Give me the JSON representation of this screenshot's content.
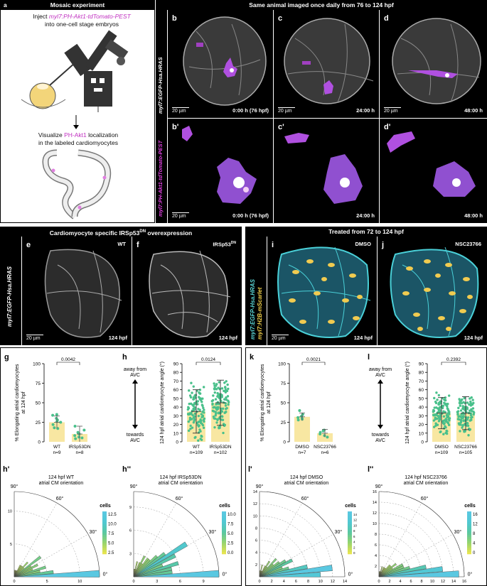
{
  "panel_a": {
    "letter": "a",
    "header": "Mosaic experiment",
    "inject_pre": "Inject ",
    "inject_construct": "myl7:PH-Akt1-tdTomato-PEST",
    "inject_post": "into one-cell stage embryos",
    "visualize_pre": "Visualize ",
    "visualize_mid": "PH-Akt1",
    "visualize_post": " localization",
    "visualize_line2": "in the labeled cardiomyocytes"
  },
  "panel_top": {
    "header": "Same animal imaged once daily from 76 to 124 hpf",
    "row1_label": "myl7:EGFP-Hsa.HRAS",
    "row2_label": "myl7:PH-Akt1-tdTomato-PEST",
    "images": [
      {
        "letter": "b",
        "time": "0:00 h (76  hpf)",
        "scale": "20 µm"
      },
      {
        "letter": "c",
        "time": "24:00 h",
        "scale": "20 µm"
      },
      {
        "letter": "d",
        "time": "48:00 h",
        "scale": "20 µm"
      },
      {
        "letter": "b'",
        "time": "0:00 h (76 hpf)",
        "scale": "20 µm"
      },
      {
        "letter": "c'",
        "time": "24:00 h",
        "scale": ""
      },
      {
        "letter": "d'",
        "time": "48:00 h",
        "scale": ""
      }
    ]
  },
  "panel_ef": {
    "header": "Cardiomyocyte specific IRSp53",
    "header_sup": "DN",
    "header_post": " overexpression",
    "side_label": "myl7:EGFP-Hsa.HRAS",
    "images": [
      {
        "letter": "e",
        "name": "WT",
        "name_sup": "",
        "time": "124 hpf",
        "scale": "20 µm"
      },
      {
        "letter": "f",
        "name": "IRSp53",
        "name_sup": "DN",
        "time": "124 hpf",
        "scale": ""
      }
    ]
  },
  "panel_ij": {
    "header": "Treated from 72 to 124 hpf",
    "side_label_1": "myl7:EGFP-Hsa.HRAS",
    "side_label_2": "myl7:H2B-mScarlet",
    "images": [
      {
        "letter": "i",
        "name": "DMSO",
        "time": "124 hpf",
        "scale": "20 µm"
      },
      {
        "letter": "j",
        "name": "NSC23766",
        "time": "124 hpf",
        "scale": ""
      }
    ]
  },
  "panel_g": {
    "letter": "g",
    "ylabel_1": "% Elongating atrial cardiomyocytes",
    "ylabel_2": "at 124 hpf",
    "pvalue": "0.0042",
    "yticks": [
      "0",
      "25",
      "50",
      "75",
      "100"
    ],
    "groups": [
      {
        "name": "WT",
        "n": "n=9"
      },
      {
        "name": "IRSp53DN",
        "n": "n=8"
      }
    ]
  },
  "panel_h": {
    "letter": "h",
    "ylabel": "124 hpf atrial cardiomyocyte angle (°)",
    "pvalue": "0.0124",
    "away": "away from",
    "away_2": "AVC",
    "towards": "towards",
    "towards_2": "AVC",
    "yticks": [
      "0",
      "10",
      "20",
      "30",
      "40",
      "50",
      "60",
      "70",
      "80",
      "90"
    ],
    "groups": [
      {
        "name": "WT",
        "n": "n=109"
      },
      {
        "name": "IRSp53DN",
        "n": "n=102"
      }
    ]
  },
  "panel_k": {
    "letter": "k",
    "ylabel_1": "% Elongating atrial cardiomyocytes",
    "ylabel_2": "at 124 hpf",
    "pvalue": "0.0021",
    "yticks": [
      "0",
      "25",
      "50",
      "75",
      "100"
    ],
    "groups": [
      {
        "name": "DMSO",
        "n": "n=7"
      },
      {
        "name": "NSC23766",
        "n": "n=6"
      }
    ]
  },
  "panel_l": {
    "letter": "l",
    "ylabel": "124 hpf atrial cardiomyocyte angle (°)",
    "pvalue": "0.2392",
    "away": "away from",
    "away_2": "AVC",
    "towards": "towards",
    "towards_2": "AVC",
    "yticks": [
      "0",
      "10",
      "20",
      "30",
      "40",
      "50",
      "60",
      "70",
      "80",
      "90"
    ],
    "groups": [
      {
        "name": "DMSO",
        "n": "n=109"
      },
      {
        "name": "NSC23766",
        "n": "n=105"
      }
    ]
  },
  "polars": [
    {
      "letter": "h'",
      "title_1": "124 hpf WT",
      "title_2": "atrial CM orientation",
      "rticks": [
        "0",
        "5",
        "10"
      ],
      "rlabels": [
        "5",
        "10"
      ],
      "cb_ticks": [
        "12.5",
        "10.0",
        "7.5",
        "5.0",
        "2.5"
      ]
    },
    {
      "letter": "h''",
      "title_1": "124 hpf IRSp53DN",
      "title_2": "atrial CM orientation",
      "rticks": [
        "0",
        "3",
        "6",
        "9"
      ],
      "rlabels": [
        "3",
        "6",
        "9"
      ],
      "cb_ticks": [
        "10.0",
        "7.5",
        "5.0",
        "2.5",
        "0.0"
      ]
    },
    {
      "letter": "l'",
      "title_1": "124 hpf DMSO",
      "title_2": "atrial CM orientation",
      "rticks": [
        "0",
        "2",
        "4",
        "6",
        "8",
        "10",
        "12",
        "14"
      ],
      "rlabels": [
        "2",
        "4",
        "6",
        "8",
        "10",
        "12",
        "14"
      ],
      "cb_ticks": [
        "14",
        "12",
        "10",
        "8",
        "6",
        "4",
        "2",
        "0"
      ]
    },
    {
      "letter": "l''",
      "title_1": "124 hpf NSC23766",
      "title_2": "atrial CM orientation",
      "rticks": [
        "0",
        "2",
        "4",
        "6",
        "8",
        "10",
        "12",
        "14",
        "16"
      ],
      "rlabels": [
        "2",
        "4",
        "6",
        "8",
        "10",
        "12",
        "14",
        "16"
      ],
      "cb_ticks": [
        "16",
        "12",
        "8",
        "4",
        "0"
      ]
    }
  ],
  "polar_common": {
    "a90": "90°",
    "a60": "60°",
    "a30": "30°",
    "a0": "0°",
    "cells": "cells"
  },
  "chart_data": [
    {
      "type": "bar",
      "panel": "g",
      "categories": [
        "WT",
        "IRSp53DN"
      ],
      "values": [
        25,
        10
      ],
      "error": [
        8,
        10
      ],
      "ylim": [
        0,
        100
      ],
      "points": [
        [
          35,
          28,
          22,
          18,
          30,
          26,
          34,
          25,
          17
        ],
        [
          8,
          6,
          10,
          20,
          5,
          12,
          15,
          4
        ]
      ]
    },
    {
      "type": "scatter",
      "panel": "h",
      "categories": [
        "WT",
        "IRSp53DN"
      ],
      "values": [
        35,
        45
      ],
      "sd": [
        25,
        26
      ],
      "ylim": [
        0,
        90
      ]
    },
    {
      "type": "bar",
      "panel": "k",
      "categories": [
        "DMSO",
        "NSC23766"
      ],
      "values": [
        32,
        11
      ],
      "error": [
        5,
        5
      ],
      "ylim": [
        0,
        100
      ],
      "points": [
        [
          30,
          35,
          28,
          40,
          33,
          29,
          31
        ],
        [
          10,
          15,
          8,
          12,
          6,
          14
        ]
      ]
    },
    {
      "type": "scatter",
      "panel": "l",
      "categories": [
        "DMSO",
        "NSC23766"
      ],
      "values": [
        33,
        33
      ],
      "sd": [
        18,
        19
      ],
      "ylim": [
        0,
        90
      ]
    },
    {
      "type": "polar-bar",
      "panel": "h'",
      "rmax": 13,
      "angles": [
        2,
        7,
        12,
        17,
        22,
        27,
        32,
        37,
        42,
        47,
        52,
        57,
        62,
        67,
        72,
        77,
        82,
        87
      ],
      "values": [
        13,
        6,
        4,
        5,
        3,
        4,
        3,
        5,
        2,
        3,
        2,
        2,
        2,
        1,
        1,
        1,
        1,
        1
      ]
    },
    {
      "type": "polar-bar",
      "panel": "h''",
      "rmax": 11,
      "angles": [
        2,
        7,
        12,
        17,
        22,
        27,
        32,
        37,
        42,
        47,
        52,
        57,
        62,
        67,
        72,
        77,
        82,
        87
      ],
      "values": [
        11,
        5,
        5,
        6,
        4,
        6,
        8,
        5,
        4,
        3,
        3,
        2,
        3,
        2,
        1,
        2,
        1,
        1
      ]
    },
    {
      "type": "polar-bar",
      "panel": "l'",
      "rmax": 14,
      "angles": [
        2,
        7,
        12,
        17,
        22,
        27,
        32,
        37,
        42,
        47,
        52,
        57,
        62,
        67,
        72,
        77,
        82,
        87
      ],
      "values": [
        10,
        12,
        8,
        5,
        4,
        6,
        5,
        4,
        3,
        4,
        2,
        3,
        2,
        1,
        1,
        2,
        1,
        1
      ]
    },
    {
      "type": "polar-bar",
      "panel": "l''",
      "rmax": 16,
      "angles": [
        2,
        7,
        12,
        17,
        22,
        27,
        32,
        37,
        42,
        47,
        52,
        57,
        62,
        67,
        72,
        77,
        82,
        87
      ],
      "values": [
        15,
        12,
        9,
        6,
        5,
        5,
        3,
        4,
        3,
        3,
        2,
        2,
        2,
        1,
        2,
        1,
        1,
        1
      ]
    }
  ]
}
